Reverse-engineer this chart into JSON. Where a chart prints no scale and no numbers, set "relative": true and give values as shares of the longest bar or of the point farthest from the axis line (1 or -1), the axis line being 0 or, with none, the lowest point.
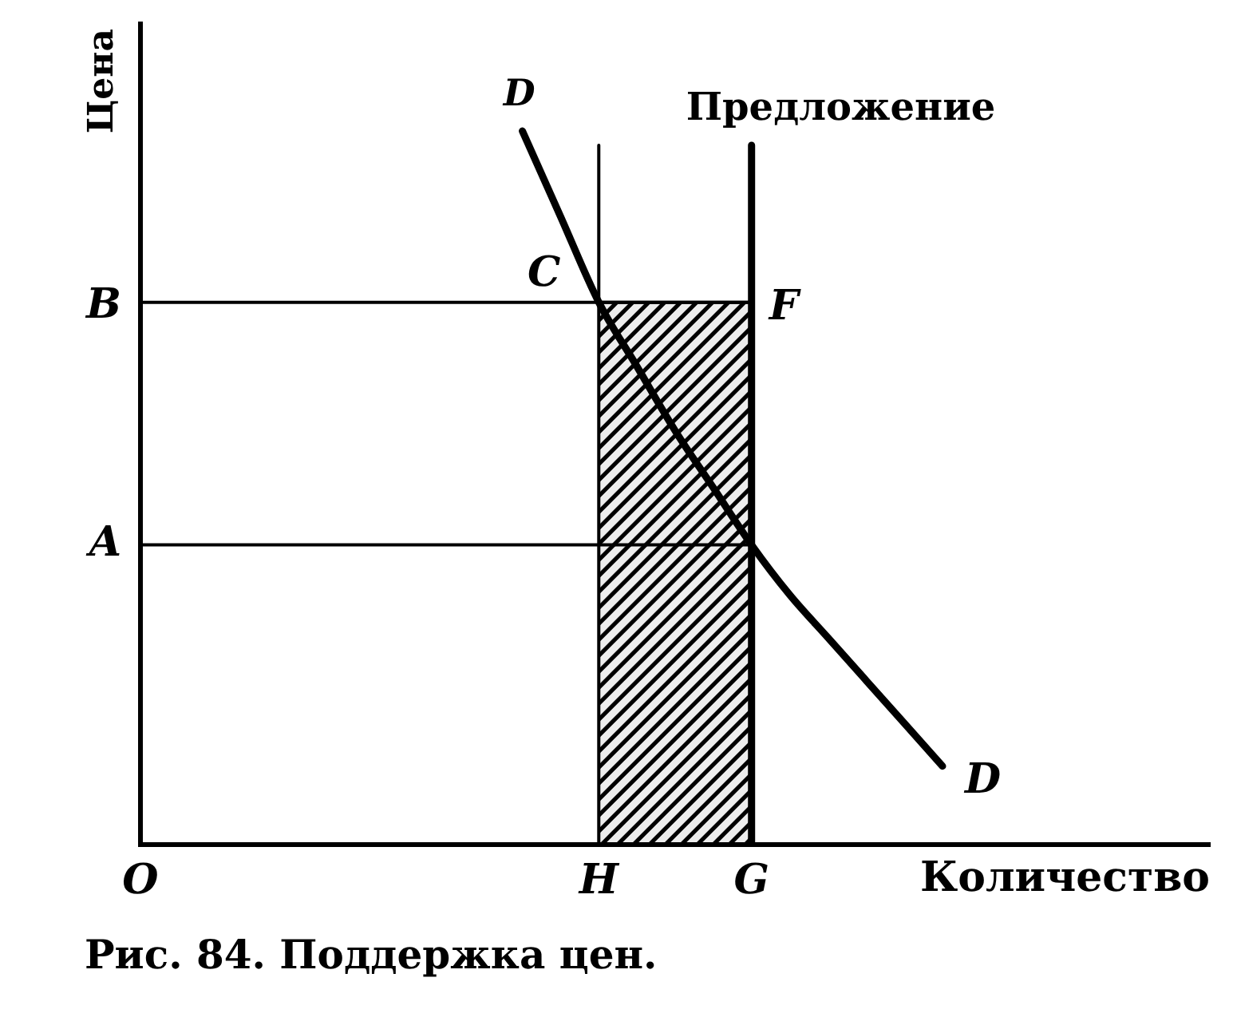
{
  "chart_data": {
    "type": "line",
    "title": "Рис. 84. Поддержка цен.",
    "xlabel": "Количество",
    "ylabel": "Цена",
    "relative": true,
    "categories": [
      "O",
      null,
      null,
      null,
      null,
      null,
      null,
      null,
      null,
      null,
      null,
      null,
      "H",
      null,
      null,
      null,
      "G",
      null,
      null,
      null,
      null,
      null,
      null,
      null,
      null,
      null,
      null,
      null,
      null
    ],
    "series": [
      {
        "name": "D",
        "color": "#000000",
        "values": [
          null,
          null,
          null,
          null,
          null,
          null,
          null,
          null,
          null,
          null,
          1,
          0.88,
          0.76,
          0.67,
          0.58,
          0.5,
          0.42,
          0.35,
          0.29,
          0.23,
          0.17,
          0.11,
          null,
          null,
          null,
          null,
          null,
          null,
          null
        ]
      },
      {
        "name": "Предложение",
        "color": "#000000",
        "x": [
          "G",
          "G"
        ],
        "values": [
          0,
          0.98
        ]
      },
      {
        "color": "#000000",
        "x": [
          "H",
          "H"
        ],
        "values": [
          0,
          0.98
        ]
      },
      {
        "color": "#000000",
        "x": [
          "O",
          "G"
        ],
        "values": [
          0.76,
          0.76
        ]
      },
      {
        "color": "#000000",
        "x": [
          "O",
          "G"
        ],
        "values": [
          0.42,
          0.42
        ]
      },
      {
        "type": "area",
        "color": "#000000",
        "x": [
          "H",
          "G"
        ],
        "values": [
          0.76,
          0.76
        ]
      }
    ],
    "annotations": [
      {
        "text": "C",
        "x": "H",
        "y": 0.76
      },
      {
        "text": "F",
        "x": "G",
        "y": 0.76
      },
      {
        "text": "B",
        "x": "O",
        "y": 0.76
      },
      {
        "text": "A",
        "x": "O",
        "y": 0.42
      }
    ]
  }
}
